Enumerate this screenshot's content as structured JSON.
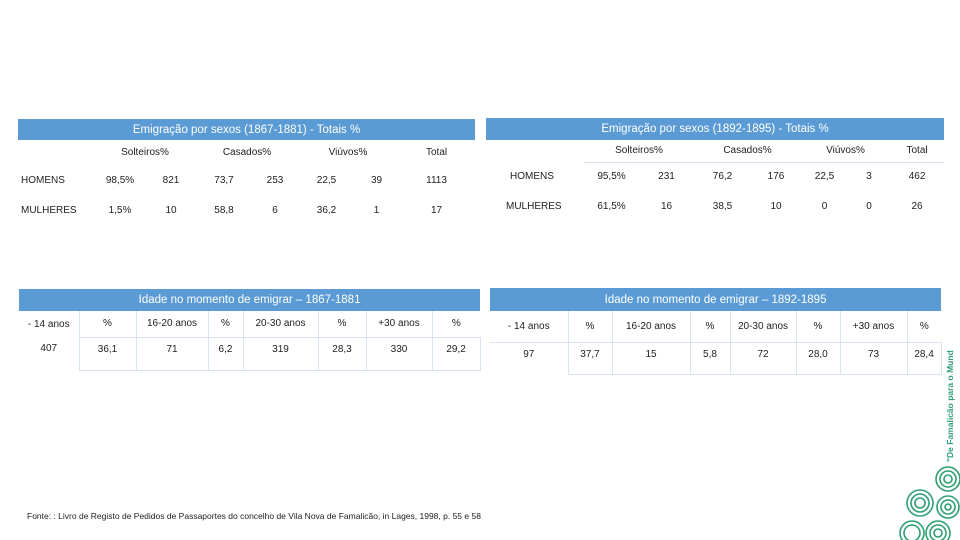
{
  "sex_1867": {
    "title": "Emigração por sexos (1867-1881) - Totais %",
    "groups": [
      "Solteiros%",
      "Casados%",
      "Viúvos%",
      "Total"
    ],
    "rows": [
      {
        "label": "HOMENS",
        "cells": [
          "98,5%",
          "821",
          "73,7",
          "253",
          "22,5",
          "39",
          "1113"
        ]
      },
      {
        "label": "MULHERES",
        "cells": [
          "1,5%",
          "10",
          "58,8",
          "6",
          "36,2",
          "1",
          "17"
        ]
      }
    ]
  },
  "sex_1892": {
    "title": "Emigração por sexos (1892-1895) - Totais %",
    "groups": [
      "Solteiros%",
      "Casados%",
      "Viúvos%",
      "Total"
    ],
    "rows": [
      {
        "label": "HOMENS",
        "cells": [
          "95,5%",
          "231",
          "76,2",
          "176",
          "22,5",
          "3",
          "462"
        ]
      },
      {
        "label": "MULHERES",
        "cells": [
          "61,5%",
          "16",
          "38,5",
          "10",
          "0",
          "0",
          "26"
        ]
      }
    ]
  },
  "age_1867": {
    "title": "Idade no momento de emigrar – 1867-1881",
    "headers": [
      "- 14 anos",
      "%",
      "16-20 anos",
      "%",
      "20-30 anos",
      "%",
      "+30 anos",
      "%"
    ],
    "values": [
      "407",
      "36,1",
      "71",
      "6,2",
      "319",
      "28,3",
      "330",
      "29,2"
    ]
  },
  "age_1892": {
    "title": "Idade no momento de emigrar – 1892-1895",
    "headers": [
      "- 14 anos",
      "%",
      "16-20 anos",
      "%",
      "20-30 anos",
      "%",
      "+30 anos",
      "%"
    ],
    "values": [
      "97",
      "37,7",
      "15",
      "5,8",
      "72",
      "28,0",
      "73",
      "28,4"
    ]
  },
  "source": "Fonte: : Livro de Registo de Pedidos de Passaportes do concelho de Vila Nova de Famalicão, in Lages, 1998, p. 55 e 58",
  "brand_text": "\"De Famalicão para o Mundo\"",
  "colors": {
    "header": "#5b9bd5",
    "border": "#d9e2ef",
    "brand": "#2e9e73"
  }
}
